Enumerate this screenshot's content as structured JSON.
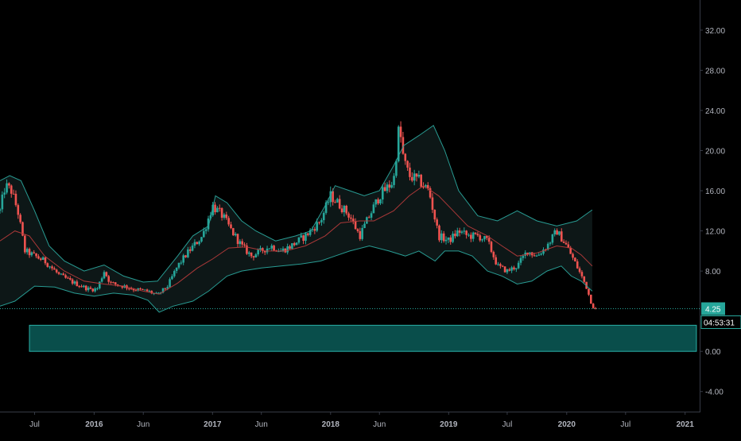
{
  "chart_data": {
    "type": "candlestick",
    "title": "",
    "xlabel": "",
    "ylabel": "",
    "ylim": [
      -6.0,
      35.0
    ],
    "grid": false,
    "legend": "none",
    "x_range": [
      "2015-03-16",
      "2021-02-15"
    ],
    "y_ticks": [
      {
        "value": 32,
        "label": "32.00"
      },
      {
        "value": 28,
        "label": "28.00"
      },
      {
        "value": 24,
        "label": "24.00"
      },
      {
        "value": 20,
        "label": "20.00"
      },
      {
        "value": 16,
        "label": "16.00"
      },
      {
        "value": 12,
        "label": "12.00"
      },
      {
        "value": 8,
        "label": "8.00"
      },
      {
        "value": 0,
        "label": "0.00"
      },
      {
        "value": -4,
        "label": "-4.00"
      }
    ],
    "x_ticks": [
      {
        "date": "2015-07-01",
        "label": "Jul",
        "bold": false
      },
      {
        "date": "2016-01-01",
        "label": "2016",
        "bold": true
      },
      {
        "date": "2016-06-01",
        "label": "Jun",
        "bold": false
      },
      {
        "date": "2017-01-01",
        "label": "2017",
        "bold": true
      },
      {
        "date": "2017-06-01",
        "label": "Jun",
        "bold": false
      },
      {
        "date": "2018-01-01",
        "label": "2018",
        "bold": true
      },
      {
        "date": "2018-06-01",
        "label": "Jun",
        "bold": false
      },
      {
        "date": "2019-01-01",
        "label": "2019",
        "bold": true
      },
      {
        "date": "2019-07-01",
        "label": "Jul",
        "bold": false
      },
      {
        "date": "2020-01-01",
        "label": "2020",
        "bold": true
      },
      {
        "date": "2020-07-01",
        "label": "Jul",
        "bold": false
      },
      {
        "date": "2021-01-01",
        "label": "2021",
        "bold": true
      }
    ],
    "price_tag": {
      "value": 4.25,
      "label": "4.25",
      "countdown": "04:53:31"
    },
    "zone": {
      "y_top": 2.6,
      "y_bottom": 0.0,
      "start": "2015-06-15",
      "end": "2021-02-05"
    },
    "price_path": [
      [
        "2015-03-16",
        14.0
      ],
      [
        "2015-04-01",
        16.5
      ],
      [
        "2015-04-20",
        16.0
      ],
      [
        "2015-05-10",
        14.0
      ],
      [
        "2015-06-01",
        10.0
      ],
      [
        "2015-07-01",
        9.5
      ],
      [
        "2015-08-01",
        9.0
      ],
      [
        "2015-09-15",
        7.6
      ],
      [
        "2015-11-01",
        6.8
      ],
      [
        "2015-12-15",
        6.2
      ],
      [
        "2016-01-10",
        6.2
      ],
      [
        "2016-02-01",
        8.0
      ],
      [
        "2016-02-20",
        6.8
      ],
      [
        "2016-04-01",
        6.5
      ],
      [
        "2016-05-01",
        6.2
      ],
      [
        "2016-06-15",
        6.0
      ],
      [
        "2016-07-15",
        5.6
      ],
      [
        "2016-08-15",
        6.5
      ],
      [
        "2016-09-15",
        8.5
      ],
      [
        "2016-10-20",
        10.0
      ],
      [
        "2016-12-01",
        11.5
      ],
      [
        "2017-01-01",
        14.5
      ],
      [
        "2017-02-01",
        13.5
      ],
      [
        "2017-03-01",
        12.0
      ],
      [
        "2017-04-01",
        10.5
      ],
      [
        "2017-05-01",
        9.5
      ],
      [
        "2017-06-01",
        10.0
      ],
      [
        "2017-07-01",
        10.5
      ],
      [
        "2017-08-01",
        10.0
      ],
      [
        "2017-09-01",
        10.5
      ],
      [
        "2017-10-15",
        11.5
      ],
      [
        "2017-12-01",
        13.0
      ],
      [
        "2018-01-01",
        15.5
      ],
      [
        "2018-02-01",
        14.5
      ],
      [
        "2018-03-01",
        13.5
      ],
      [
        "2018-04-01",
        11.5
      ],
      [
        "2018-05-01",
        13.5
      ],
      [
        "2018-06-01",
        15.5
      ],
      [
        "2018-07-01",
        16.5
      ],
      [
        "2018-07-15",
        17.0
      ],
      [
        "2018-08-01",
        22.5
      ],
      [
        "2018-08-15",
        19.0
      ],
      [
        "2018-09-01",
        17.5
      ],
      [
        "2018-10-01",
        17.0
      ],
      [
        "2018-11-01",
        16.0
      ],
      [
        "2018-12-01",
        11.5
      ],
      [
        "2019-01-01",
        11.0
      ],
      [
        "2019-02-01",
        12.0
      ],
      [
        "2019-03-01",
        11.5
      ],
      [
        "2019-04-01",
        11.5
      ],
      [
        "2019-05-01",
        11.0
      ],
      [
        "2019-06-01",
        8.5
      ],
      [
        "2019-07-01",
        8.0
      ],
      [
        "2019-08-01",
        8.5
      ],
      [
        "2019-09-01",
        10.0
      ],
      [
        "2019-10-01",
        9.5
      ],
      [
        "2019-11-01",
        10.5
      ],
      [
        "2019-12-01",
        12.0
      ],
      [
        "2020-01-01",
        10.5
      ],
      [
        "2020-02-01",
        8.5
      ],
      [
        "2020-03-01",
        6.5
      ],
      [
        "2020-03-20",
        4.5
      ],
      [
        "2020-04-01",
        4.25
      ]
    ],
    "series": [
      {
        "role": "bollinger-upper",
        "color": "#2aa39a",
        "points": [
          [
            "2015-03-16",
            17.0
          ],
          [
            "2015-04-15",
            17.5
          ],
          [
            "2015-05-20",
            17.0
          ],
          [
            "2015-07-01",
            14.0
          ],
          [
            "2015-08-15",
            10.5
          ],
          [
            "2015-10-01",
            9.0
          ],
          [
            "2015-12-01",
            8.0
          ],
          [
            "2016-02-01",
            8.6
          ],
          [
            "2016-04-01",
            7.5
          ],
          [
            "2016-06-01",
            6.9
          ],
          [
            "2016-07-15",
            7.0
          ],
          [
            "2016-09-15",
            9.5
          ],
          [
            "2016-11-01",
            11.5
          ],
          [
            "2016-12-20",
            12.5
          ],
          [
            "2017-01-10",
            15.5
          ],
          [
            "2017-02-15",
            14.8
          ],
          [
            "2017-04-01",
            13.0
          ],
          [
            "2017-05-15",
            12.0
          ],
          [
            "2017-07-15",
            11.0
          ],
          [
            "2017-09-15",
            11.5
          ],
          [
            "2017-11-01",
            12.0
          ],
          [
            "2017-12-15",
            14.5
          ],
          [
            "2018-01-15",
            16.5
          ],
          [
            "2018-03-01",
            16.0
          ],
          [
            "2018-04-15",
            15.5
          ],
          [
            "2018-06-01",
            16.0
          ],
          [
            "2018-07-15",
            18.5
          ],
          [
            "2018-08-15",
            20.5
          ],
          [
            "2018-10-01",
            21.5
          ],
          [
            "2018-11-15",
            22.5
          ],
          [
            "2018-12-20",
            20.0
          ],
          [
            "2019-02-01",
            16.0
          ],
          [
            "2019-04-01",
            13.5
          ],
          [
            "2019-06-01",
            13.0
          ],
          [
            "2019-08-01",
            14.0
          ],
          [
            "2019-10-01",
            13.0
          ],
          [
            "2019-12-01",
            12.5
          ],
          [
            "2020-02-01",
            13.0
          ],
          [
            "2020-03-20",
            14.1
          ]
        ]
      },
      {
        "role": "bollinger-lower",
        "color": "#2aa39a",
        "points": [
          [
            "2015-03-16",
            4.5
          ],
          [
            "2015-05-01",
            5.0
          ],
          [
            "2015-07-01",
            6.5
          ],
          [
            "2015-09-01",
            6.4
          ],
          [
            "2015-11-01",
            5.8
          ],
          [
            "2016-01-01",
            5.5
          ],
          [
            "2016-03-01",
            5.8
          ],
          [
            "2016-05-01",
            5.6
          ],
          [
            "2016-06-15",
            5.1
          ],
          [
            "2016-07-20",
            3.9
          ],
          [
            "2016-09-01",
            4.5
          ],
          [
            "2016-11-01",
            5.0
          ],
          [
            "2016-12-20",
            6.0
          ],
          [
            "2017-02-15",
            7.5
          ],
          [
            "2017-04-01",
            8.0
          ],
          [
            "2017-06-01",
            8.3
          ],
          [
            "2017-08-01",
            8.5
          ],
          [
            "2017-10-01",
            8.7
          ],
          [
            "2017-12-01",
            9.0
          ],
          [
            "2018-01-15",
            9.5
          ],
          [
            "2018-03-01",
            10.0
          ],
          [
            "2018-05-01",
            10.5
          ],
          [
            "2018-07-01",
            10.0
          ],
          [
            "2018-08-20",
            9.5
          ],
          [
            "2018-10-01",
            10.0
          ],
          [
            "2018-11-20",
            9.0
          ],
          [
            "2018-12-20",
            10.0
          ],
          [
            "2019-02-01",
            10.0
          ],
          [
            "2019-03-15",
            9.5
          ],
          [
            "2019-05-01",
            8.0
          ],
          [
            "2019-06-15",
            7.5
          ],
          [
            "2019-08-01",
            6.7
          ],
          [
            "2019-09-15",
            7.0
          ],
          [
            "2019-11-01",
            8.0
          ],
          [
            "2019-12-15",
            8.5
          ],
          [
            "2020-01-15",
            7.5
          ],
          [
            "2020-02-15",
            7.0
          ],
          [
            "2020-03-20",
            6.0
          ]
        ]
      },
      {
        "role": "bollinger-basis",
        "color": "#b23a3a",
        "points": [
          [
            "2015-03-16",
            11.0
          ],
          [
            "2015-05-01",
            12.0
          ],
          [
            "2015-06-15",
            11.5
          ],
          [
            "2015-08-01",
            9.5
          ],
          [
            "2015-10-01",
            8.0
          ],
          [
            "2015-12-01",
            7.0
          ],
          [
            "2016-02-01",
            6.7
          ],
          [
            "2016-04-01",
            6.5
          ],
          [
            "2016-06-01",
            6.0
          ],
          [
            "2016-07-20",
            5.7
          ],
          [
            "2016-09-15",
            6.8
          ],
          [
            "2016-11-15",
            8.3
          ],
          [
            "2017-01-01",
            9.2
          ],
          [
            "2017-02-20",
            10.3
          ],
          [
            "2017-04-15",
            10.4
          ],
          [
            "2017-06-15",
            10.0
          ],
          [
            "2017-08-15",
            10.0
          ],
          [
            "2017-10-15",
            10.5
          ],
          [
            "2017-12-15",
            11.5
          ],
          [
            "2018-02-01",
            12.8
          ],
          [
            "2018-04-01",
            13.0
          ],
          [
            "2018-05-15",
            13.0
          ],
          [
            "2018-07-15",
            14.0
          ],
          [
            "2018-09-01",
            15.5
          ],
          [
            "2018-10-15",
            16.5
          ],
          [
            "2018-12-01",
            15.5
          ],
          [
            "2019-01-15",
            14.0
          ],
          [
            "2019-03-01",
            12.5
          ],
          [
            "2019-05-01",
            11.5
          ],
          [
            "2019-06-15",
            10.5
          ],
          [
            "2019-08-01",
            9.5
          ],
          [
            "2019-10-01",
            9.8
          ],
          [
            "2019-12-01",
            10.5
          ],
          [
            "2020-01-15",
            10.3
          ],
          [
            "2020-02-15",
            9.6
          ],
          [
            "2020-03-20",
            8.5
          ]
        ]
      }
    ]
  },
  "colors": {
    "background": "#000000",
    "candle_up": "#26a69a",
    "candle_down": "#ef5350",
    "band": "#2aa39a",
    "basis": "#b23a3a",
    "band_fill": "#0e1a1a",
    "zone_fill": "#0a5c58",
    "zone_border": "#2ab0a7",
    "price_tag": "#26a69a",
    "axis_text": "#b2b5be",
    "axis_line": "#363a45"
  }
}
